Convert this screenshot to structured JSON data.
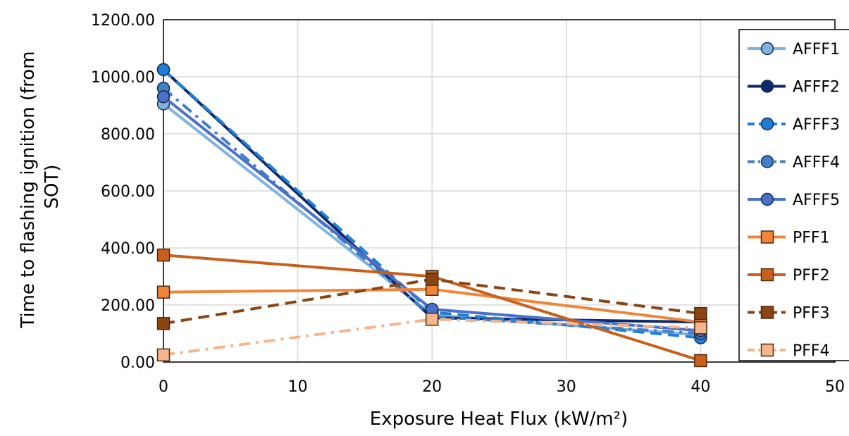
{
  "chart_data": {
    "type": "line",
    "xlabel": "Exposure Heat Flux (kW/m²)",
    "ylabel_line1": "Time to flashing ignition (from",
    "ylabel_line2": "SOT)",
    "xlim": [
      0,
      50
    ],
    "ylim": [
      0,
      1200
    ],
    "xticks": [
      0,
      10,
      20,
      30,
      40,
      50
    ],
    "xtick_labels": [
      "0",
      "10",
      "20",
      "30",
      "40",
      "50"
    ],
    "yticks": [
      0,
      200,
      400,
      600,
      800,
      1000,
      1200
    ],
    "ytick_labels": [
      "0.00",
      "200.00",
      "400.00",
      "600.00",
      "800.00",
      "1000.00",
      "1200.00"
    ],
    "grid": true,
    "legend_position": "right",
    "x": [
      0,
      20,
      40
    ],
    "series": [
      {
        "name": "AFFF1",
        "values": [
          905,
          165,
          95
        ],
        "color": "#7fb2e0",
        "marker": "circle",
        "dash": "solid"
      },
      {
        "name": "AFFF2",
        "values": [
          1025,
          155,
          140
        ],
        "color": "#0d2a6e",
        "marker": "circle",
        "dash": "solid"
      },
      {
        "name": "AFFF3",
        "values": [
          1025,
          175,
          85
        ],
        "color": "#1f7fd6",
        "marker": "circle",
        "dash": "dash"
      },
      {
        "name": "AFFF4",
        "values": [
          960,
          160,
          100
        ],
        "color": "#3f7fc4",
        "marker": "circle",
        "dash": "dashdot"
      },
      {
        "name": "AFFF5",
        "values": [
          930,
          185,
          110
        ],
        "color": "#4a70c8",
        "marker": "circle",
        "dash": "solid"
      },
      {
        "name": "PFF1",
        "values": [
          245,
          255,
          140
        ],
        "color": "#f0853a",
        "marker": "square",
        "dash": "solid"
      },
      {
        "name": "PFF2",
        "values": [
          375,
          300,
          5
        ],
        "color": "#c8601c",
        "marker": "square",
        "dash": "solid"
      },
      {
        "name": "PFF3",
        "values": [
          135,
          290,
          170
        ],
        "color": "#8b4513",
        "marker": "square",
        "dash": "dash"
      },
      {
        "name": "PFF4",
        "values": [
          25,
          150,
          120
        ],
        "color": "#f5b48a",
        "marker": "square",
        "dash": "dashdot"
      }
    ]
  }
}
